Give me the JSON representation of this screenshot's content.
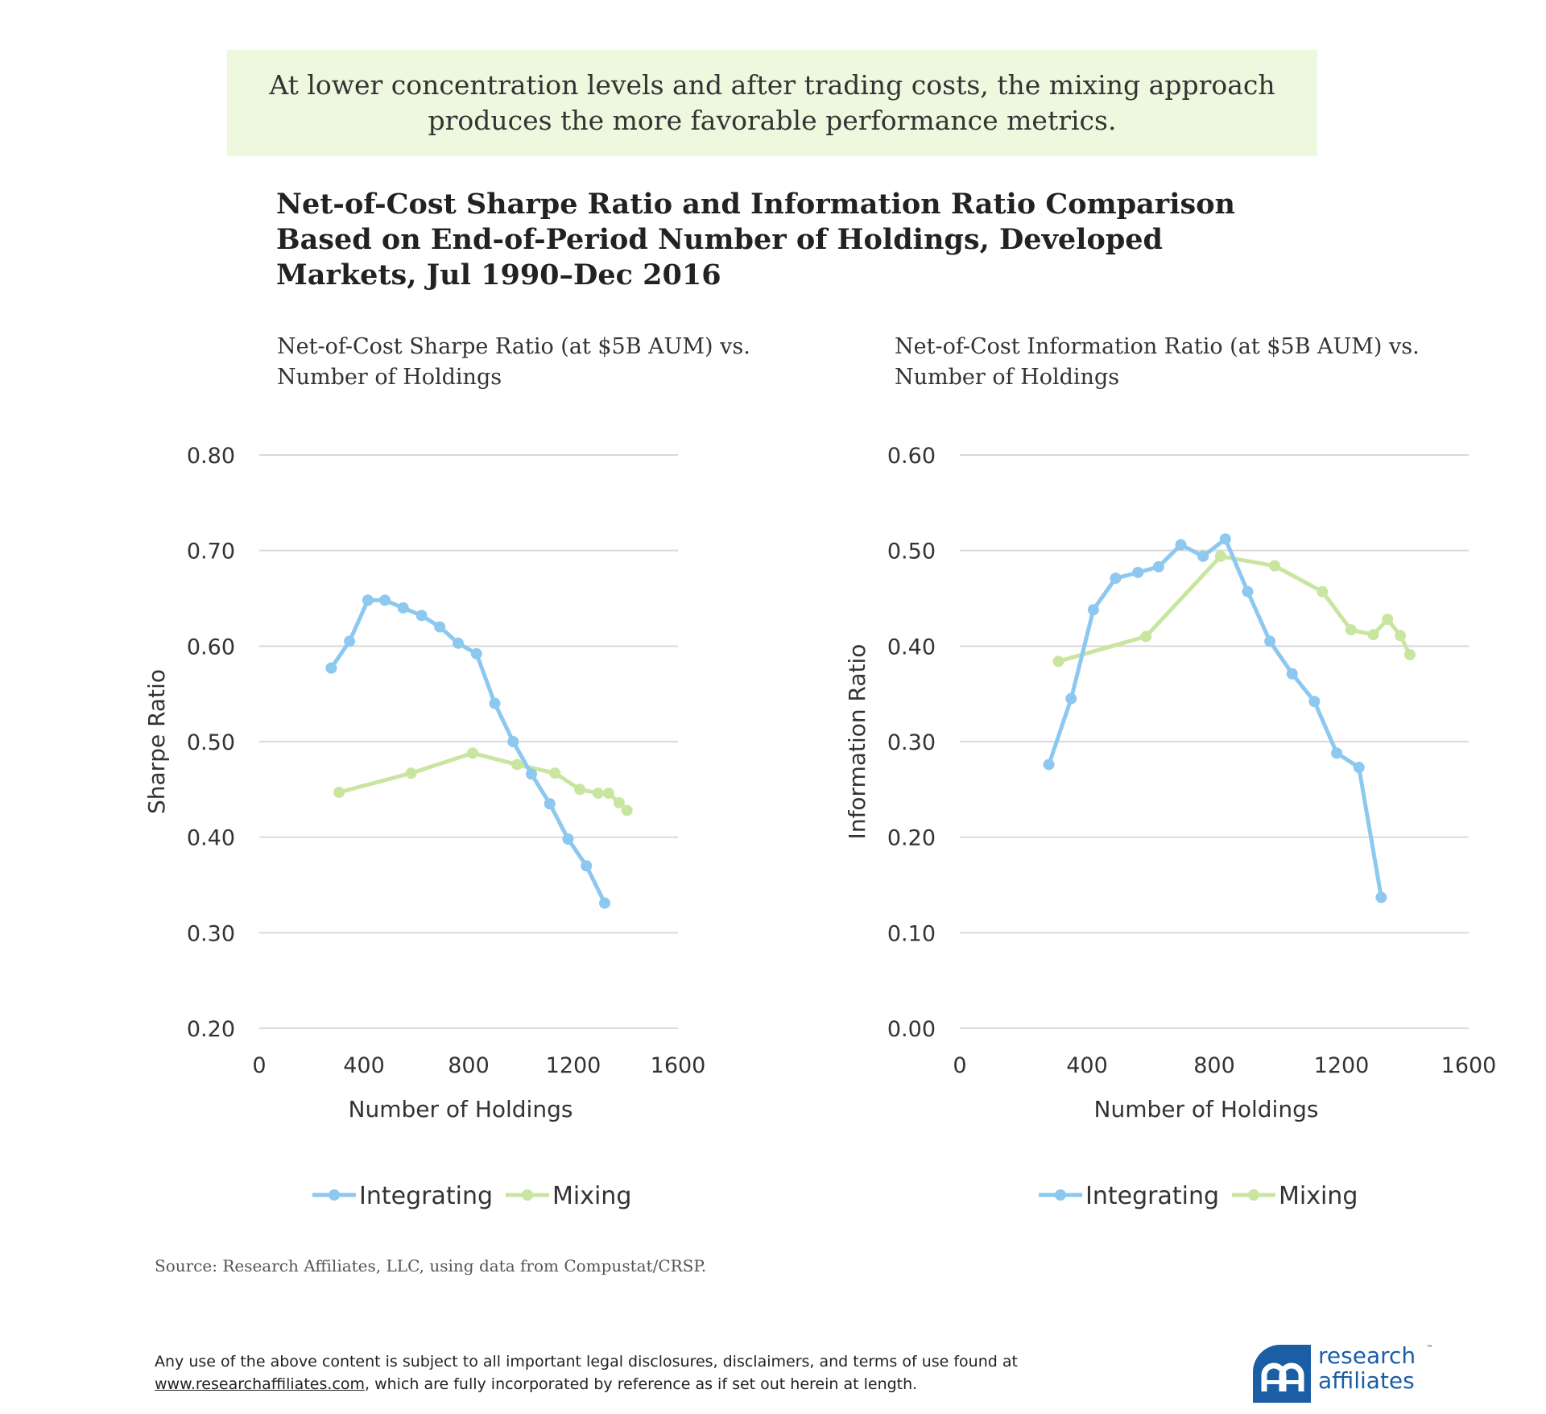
{
  "banner": {
    "text": "At lower concentration levels and after trading costs, the mixing approach produces the more favorable performance metrics."
  },
  "title": {
    "lines": [
      "Net-of-Cost Sharpe Ratio and Information Ratio Comparison",
      "Based on End-of-Period Number of Holdings, Developed",
      "Markets, Jul 1990–Dec 2016"
    ]
  },
  "chart_data": [
    {
      "type": "line",
      "title_lines": [
        "Net-of-Cost Sharpe Ratio (at $5B AUM) vs.",
        "Number of Holdings"
      ],
      "xlabel": "Number of Holdings",
      "ylabel": "Sharpe Ratio",
      "xlim": [
        0,
        1600
      ],
      "ylim": [
        0.2,
        0.8
      ],
      "x_ticks": [
        "0",
        "400",
        "800",
        "1200",
        "1600"
      ],
      "y_ticks": [
        "0.20",
        "0.30",
        "0.40",
        "0.50",
        "0.60",
        "0.70",
        "0.80"
      ],
      "grid": true,
      "legend_position": "bottom",
      "series": [
        {
          "name": "Integrating",
          "color": "#8cc8ef",
          "x": [
            275,
            345,
            415,
            480,
            550,
            620,
            690,
            760,
            830,
            900,
            970,
            1040,
            1110,
            1180,
            1250,
            1320
          ],
          "y": [
            0.577,
            0.605,
            0.648,
            0.648,
            0.64,
            0.632,
            0.62,
            0.603,
            0.592,
            0.54,
            0.5,
            0.466,
            0.435,
            0.398,
            0.37,
            0.331
          ]
        },
        {
          "name": "Mixing",
          "color": "#c8e6a0",
          "x": [
            305,
            580,
            815,
            985,
            1130,
            1225,
            1295,
            1335,
            1375,
            1405
          ],
          "y": [
            0.447,
            0.467,
            0.488,
            0.476,
            0.467,
            0.45,
            0.446,
            0.446,
            0.436,
            0.428
          ]
        }
      ]
    },
    {
      "type": "line",
      "title_lines": [
        "Net-of-Cost Information Ratio (at $5B AUM) vs.",
        "Number of Holdings"
      ],
      "xlabel": "Number of Holdings",
      "ylabel": "Information Ratio",
      "xlim": [
        0,
        1600
      ],
      "ylim": [
        0,
        0.6
      ],
      "x_ticks": [
        "0",
        "400",
        "800",
        "1200",
        "1600"
      ],
      "y_ticks": [
        "0.00",
        "0.10",
        "0.20",
        "0.30",
        "0.40",
        "0.50",
        "0.60"
      ],
      "grid": true,
      "legend_position": "bottom",
      "series": [
        {
          "name": "Integrating",
          "color": "#8cc8ef",
          "x": [
            280,
            350,
            420,
            490,
            560,
            625,
            695,
            765,
            835,
            905,
            975,
            1045,
            1115,
            1185,
            1255,
            1325
          ],
          "y": [
            0.276,
            0.345,
            0.438,
            0.471,
            0.477,
            0.483,
            0.506,
            0.494,
            0.512,
            0.457,
            0.405,
            0.371,
            0.342,
            0.288,
            0.273,
            0.137
          ]
        },
        {
          "name": "Mixing",
          "color": "#c8e6a0",
          "x": [
            310,
            585,
            820,
            990,
            1140,
            1230,
            1300,
            1345,
            1385,
            1415
          ],
          "y": [
            0.384,
            0.41,
            0.494,
            0.484,
            0.457,
            0.417,
            0.412,
            0.428,
            0.411,
            0.391
          ]
        }
      ]
    }
  ],
  "source": "Source:  Research Affiliates, LLC, using data from Compustat/CRSP.",
  "legal": {
    "line1": "Any use of the above content is subject to all important legal disclosures, disclaimers, and terms of use found at",
    "link": "www.researchaffiliates.com",
    "line2_rest": ", which are fully incorporated by reference as if set out herein at length."
  },
  "logo": {
    "line1": "research",
    "line2": "affiliates",
    "tm": "™",
    "color": "#1b5ea6"
  }
}
